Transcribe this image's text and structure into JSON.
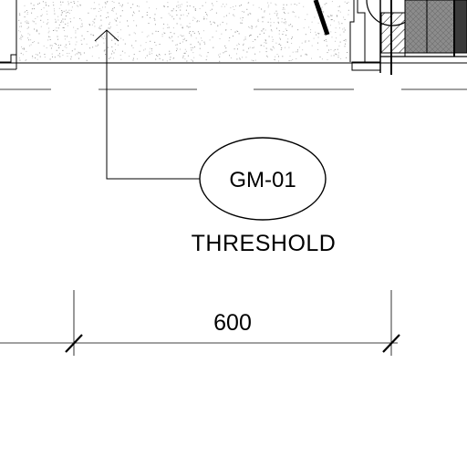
{
  "tag": {
    "code": "GM-01",
    "caption": "THRESHOLD"
  },
  "dimension": {
    "value": "600"
  },
  "colors": {
    "line": "#000000",
    "background": "#ffffff",
    "hatch_gray": "#8c8c8c",
    "dark_block": "#3a3a3a",
    "speckle": "#b0b0b0"
  }
}
